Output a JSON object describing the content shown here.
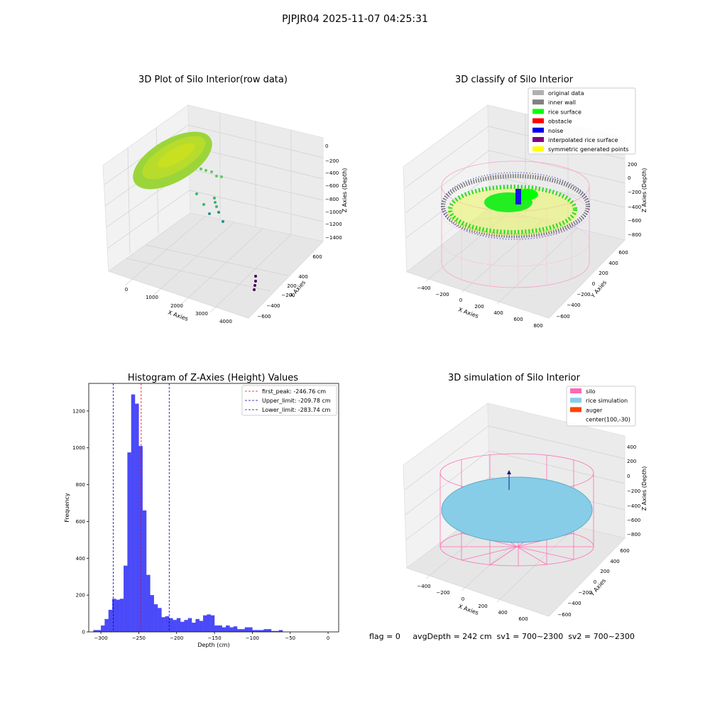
{
  "suptitle": "PJPJR04 2025-11-07 04:25:31",
  "chart_data": [
    {
      "type": "scatter3d",
      "title": "3D Plot of Silo Interior(row data)",
      "xlabel": "X Axies",
      "ylabel": "Y Axies",
      "zlabel": "Z Axies (Depth)",
      "x_ticks": [
        "0",
        "1000",
        "2000",
        "3000",
        "4000"
      ],
      "y_ticks": [
        "600",
        "400",
        "200",
        "0",
        "−200",
        "−400",
        "−600"
      ],
      "z_ticks": [
        "0",
        "−200",
        "−400",
        "−600",
        "−800",
        "−1000",
        "−1200",
        "−1400"
      ],
      "colormap": "viridis",
      "grid": true
    },
    {
      "type": "scatter3d",
      "title": "3D classify of Silo Interior",
      "xlabel": "X Axies",
      "ylabel": "Y Axies",
      "zlabel": "Z Axies (Depth)",
      "x_ticks": [
        "−400",
        "−200",
        "0",
        "200",
        "400",
        "600",
        "800"
      ],
      "y_ticks": [
        "600",
        "400",
        "200",
        "0",
        "−200",
        "−400",
        "−600"
      ],
      "z_ticks": [
        "200",
        "0",
        "−200",
        "−400",
        "−600",
        "−800"
      ],
      "legend_position": "top-right",
      "legend": [
        {
          "label": "original data",
          "color": "#b0b0b0"
        },
        {
          "label": "inner wall",
          "color": "#808080"
        },
        {
          "label": "rice surface",
          "color": "#00ff00"
        },
        {
          "label": "obstacle",
          "color": "#ff0000"
        },
        {
          "label": "noise",
          "color": "#0000ee"
        },
        {
          "label": "interpolated rice surface",
          "color": "#800080"
        },
        {
          "label": "symmetric generated points",
          "color": "#ffff00"
        }
      ],
      "grid": true
    },
    {
      "type": "bar",
      "title": "Histogram of Z-Axies (Height) Values",
      "xlabel": "Depth (cm)",
      "ylabel": "Frequency",
      "xlim": [
        -316,
        14
      ],
      "ylim": [
        0,
        1350
      ],
      "x_ticks": [
        -300,
        -250,
        -200,
        -150,
        -100,
        -50,
        0
      ],
      "x_tick_labels": [
        "−300",
        "−250",
        "−200",
        "−150",
        "−100",
        "−50",
        "0"
      ],
      "y_ticks": [
        0,
        200,
        400,
        600,
        800,
        1000,
        1200
      ],
      "y_tick_labels": [
        "0",
        "200",
        "400",
        "600",
        "800",
        "1000",
        "1200"
      ],
      "bar_color": "#4a4af8",
      "bin_start": -310,
      "bin_width": 5,
      "values": [
        10,
        10,
        35,
        70,
        120,
        180,
        175,
        180,
        360,
        975,
        1290,
        1240,
        1010,
        660,
        310,
        200,
        150,
        130,
        80,
        85,
        75,
        65,
        75,
        55,
        65,
        75,
        50,
        70,
        60,
        90,
        95,
        90,
        35,
        35,
        25,
        35,
        25,
        30,
        15,
        15,
        25,
        25,
        10,
        10,
        10,
        15,
        15,
        5,
        5,
        10
      ],
      "lines": [
        {
          "label": "first_peak: -246.76 cm",
          "x": -246.76,
          "color": "#ff0000"
        },
        {
          "label": "Upper_limit: -209.78 cm",
          "x": -209.78,
          "color": "#0000aa"
        },
        {
          "label": "Lower_limit: -283.74 cm",
          "x": -283.74,
          "color": "#0000aa"
        }
      ],
      "legend_position": "top-right",
      "grid": false
    },
    {
      "type": "surface3d",
      "title": "3D simulation of Silo Interior",
      "xlabel": "X Axies",
      "ylabel": "Y Axies",
      "zlabel": "Z Axies (Depth)",
      "x_ticks": [
        "−400",
        "−200",
        "0",
        "200",
        "400",
        "600"
      ],
      "y_ticks": [
        "600",
        "400",
        "200",
        "0",
        "−200",
        "−400",
        "−600"
      ],
      "z_ticks": [
        "400",
        "200",
        "0",
        "−200",
        "−400",
        "−600",
        "−800"
      ],
      "legend_position": "top-right",
      "legend": [
        {
          "label": "silo",
          "color": "#ff69b4"
        },
        {
          "label": "rice simulation",
          "color": "#87ceeb"
        },
        {
          "label": "auger",
          "color": "#ff4500"
        },
        {
          "label": "center(100,-30)",
          "color": ""
        }
      ],
      "grid": true
    }
  ],
  "footer": "flag = 0     avgDepth = 242 cm  sv1 = 700~2300  sv2 = 700~2300"
}
